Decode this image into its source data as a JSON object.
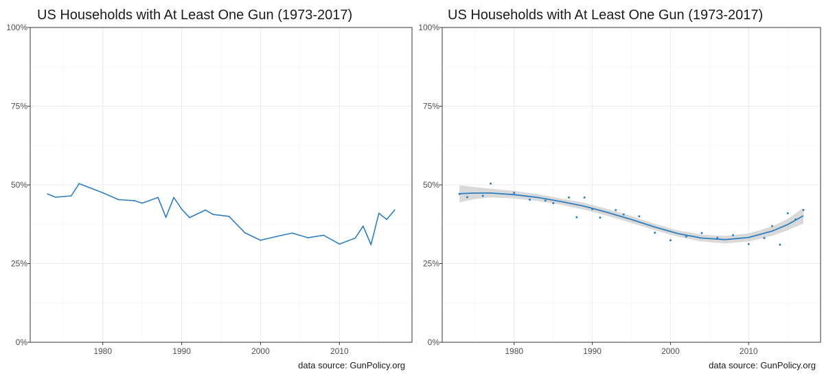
{
  "chart_data": [
    {
      "type": "line",
      "title": "US Households with At Least One Gun (1973-2017)",
      "caption": "data source: GunPolicy.org",
      "xlabel": "",
      "ylabel": "",
      "xlim": [
        1970.8,
        2019.2
      ],
      "ylim": [
        0,
        1
      ],
      "x_ticks": [
        1980,
        1990,
        2000,
        2010
      ],
      "x_tick_labels": [
        "1980",
        "1990",
        "2000",
        "2010"
      ],
      "y_ticks": [
        0,
        0.25,
        0.5,
        0.75,
        1
      ],
      "y_tick_labels": [
        "0%",
        "25%",
        "50%",
        "75%",
        "100%"
      ],
      "grid": true,
      "color": "#2e7ebc",
      "x": [
        1973,
        1974,
        1976,
        1977,
        1980,
        1982,
        1984,
        1985,
        1987,
        1988,
        1989,
        1990,
        1991,
        1993,
        1994,
        1996,
        1998,
        2000,
        2002,
        2004,
        2006,
        2008,
        2010,
        2012,
        2013,
        2014,
        2015,
        2016,
        2017
      ],
      "y": [
        0.471,
        0.461,
        0.465,
        0.504,
        0.475,
        0.453,
        0.45,
        0.442,
        0.46,
        0.397,
        0.46,
        0.423,
        0.396,
        0.42,
        0.406,
        0.4,
        0.348,
        0.324,
        0.336,
        0.347,
        0.332,
        0.34,
        0.312,
        0.331,
        0.369,
        0.31,
        0.41,
        0.39,
        0.42
      ]
    },
    {
      "type": "scatter",
      "title": "US Households with At Least One Gun (1973-2017)",
      "caption": "data source: GunPolicy.org",
      "xlabel": "",
      "ylabel": "",
      "xlim": [
        1970.8,
        2019.2
      ],
      "ylim": [
        0,
        1
      ],
      "x_ticks": [
        1980,
        1990,
        2000,
        2010
      ],
      "x_tick_labels": [
        "1980",
        "1990",
        "2000",
        "2010"
      ],
      "y_ticks": [
        0,
        0.25,
        0.5,
        0.75,
        1
      ],
      "y_tick_labels": [
        "0%",
        "25%",
        "50%",
        "75%",
        "100%"
      ],
      "grid": true,
      "color": "#2e7ebc",
      "band_color": "#cccccc",
      "x": [
        1973,
        1974,
        1976,
        1977,
        1980,
        1982,
        1984,
        1985,
        1987,
        1988,
        1989,
        1990,
        1991,
        1993,
        1994,
        1996,
        1998,
        2000,
        2002,
        2004,
        2006,
        2008,
        2010,
        2012,
        2013,
        2014,
        2015,
        2016,
        2017
      ],
      "y": [
        0.471,
        0.461,
        0.465,
        0.504,
        0.475,
        0.453,
        0.45,
        0.442,
        0.46,
        0.397,
        0.46,
        0.423,
        0.396,
        0.42,
        0.406,
        0.4,
        0.348,
        0.324,
        0.336,
        0.347,
        0.332,
        0.34,
        0.312,
        0.331,
        0.369,
        0.31,
        0.41,
        0.39,
        0.42
      ],
      "smooth": {
        "x": [
          1973,
          1975,
          1977,
          1980,
          1983,
          1986,
          1989,
          1992,
          1995,
          1998,
          2001,
          2004,
          2007,
          2010,
          2013,
          2015,
          2017
        ],
        "y": [
          0.472,
          0.474,
          0.474,
          0.469,
          0.46,
          0.447,
          0.432,
          0.412,
          0.39,
          0.366,
          0.345,
          0.331,
          0.326,
          0.333,
          0.353,
          0.374,
          0.402
        ],
        "lo": [
          0.445,
          0.455,
          0.46,
          0.457,
          0.449,
          0.437,
          0.421,
          0.401,
          0.379,
          0.356,
          0.335,
          0.32,
          0.314,
          0.32,
          0.338,
          0.356,
          0.377
        ],
        "hi": [
          0.499,
          0.493,
          0.488,
          0.481,
          0.471,
          0.457,
          0.443,
          0.423,
          0.401,
          0.376,
          0.355,
          0.342,
          0.338,
          0.346,
          0.368,
          0.392,
          0.427
        ]
      }
    }
  ]
}
